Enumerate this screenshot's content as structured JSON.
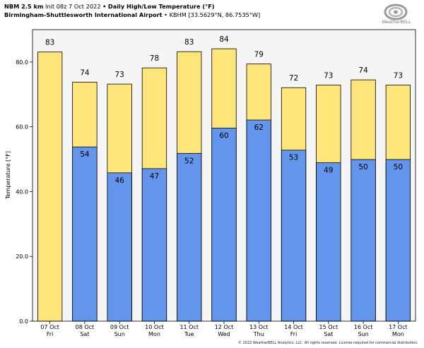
{
  "header": {
    "model": "NBM 2.5 km",
    "init": "Init 08z 7 Oct 2022",
    "bullet": "•",
    "product": "Daily High/Low Temperature (°F)",
    "station": "Birmingham-Shuttlesworth International Airport",
    "station_code": "KBHM [33.5629°N, 86.7535°W]"
  },
  "logo": {
    "text": "WeatherBELL",
    "icon": "swirl-logo-icon"
  },
  "copyright": "© 2022 WeatherBELL Analytics, LLC. All rights reserved. License required for commercial distribution.",
  "colors": {
    "high": "#FFE57A",
    "low": "#6495ED",
    "plot_bg": "#F5F5F5",
    "edge": "#000000"
  },
  "chart_data": {
    "type": "bar",
    "ylabel": "Temperature [°F]",
    "ylim": [
      0,
      90
    ],
    "yticks": [
      0.0,
      20.0,
      40.0,
      60.0,
      80.0
    ],
    "ytick_labels": [
      "0.0",
      "20.0",
      "40.0",
      "60.0",
      "80.0"
    ],
    "grid": false,
    "categories": [
      {
        "date": "07 Oct",
        "day": "Fri"
      },
      {
        "date": "08 Oct",
        "day": "Sat"
      },
      {
        "date": "09 Oct",
        "day": "Sun"
      },
      {
        "date": "10 Oct",
        "day": "Mon"
      },
      {
        "date": "11 Oct",
        "day": "Tue"
      },
      {
        "date": "12 Oct",
        "day": "Wed"
      },
      {
        "date": "13 Oct",
        "day": "Thu"
      },
      {
        "date": "14 Oct",
        "day": "Fri"
      },
      {
        "date": "15 Oct",
        "day": "Sat"
      },
      {
        "date": "16 Oct",
        "day": "Sun"
      },
      {
        "date": "17 Oct",
        "day": "Mon"
      }
    ],
    "series": [
      {
        "key": "high",
        "values": [
          83.1,
          73.8,
          73.2,
          78.2,
          83.2,
          84.1,
          79.4,
          72.1,
          72.9,
          74.5,
          72.9
        ],
        "labels": [
          "83",
          "74",
          "73",
          "78",
          "83",
          "84",
          "79",
          "72",
          "73",
          "74",
          "73"
        ]
      },
      {
        "key": "low",
        "values": [
          null,
          53.8,
          45.8,
          47.1,
          51.8,
          59.6,
          62.1,
          52.8,
          48.9,
          49.9,
          49.9
        ],
        "labels": [
          null,
          "54",
          "46",
          "47",
          "52",
          "60",
          "62",
          "53",
          "49",
          "50",
          "50"
        ]
      }
    ]
  }
}
